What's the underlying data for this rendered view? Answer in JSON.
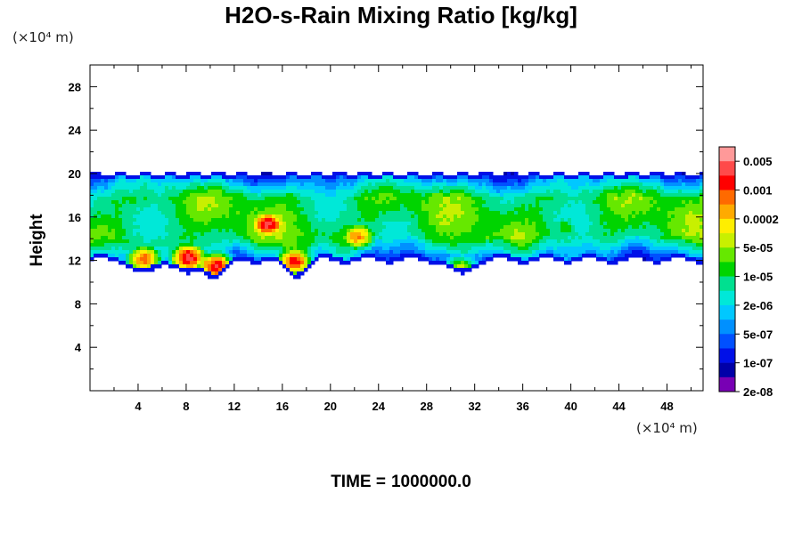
{
  "chart_data": {
    "type": "heatmap",
    "title": "H2O-s-Rain Mixing Ratio [kg/kg]",
    "xlabel": "",
    "ylabel": "Height",
    "x_unit": "(×10⁴ m)",
    "y_unit": "(×10⁴ m)",
    "xlim": [
      0,
      51
    ],
    "ylim": [
      0,
      30
    ],
    "x_ticks": [
      4,
      8,
      12,
      16,
      20,
      24,
      28,
      32,
      36,
      40,
      44,
      48
    ],
    "y_ticks": [
      4,
      8,
      12,
      16,
      20,
      24,
      28
    ],
    "colorbar": {
      "labels": [
        "0.005",
        "0.001",
        "0.0002",
        "5e-05",
        "1e-05",
        "2e-06",
        "5e-07",
        "1e-07",
        "2e-08"
      ],
      "colors": [
        "#ff9999",
        "#ff4a4a",
        "#ff0000",
        "#ff6a00",
        "#ffaa00",
        "#ffee00",
        "#c8f000",
        "#66e800",
        "#00d400",
        "#00e090",
        "#00e8d8",
        "#00c8ff",
        "#0090ff",
        "#0050ff",
        "#0010e8",
        "#0000a8",
        "#7800b4"
      ]
    },
    "layer": {
      "bottom_height": 12,
      "top_height": 20,
      "description_free": true
    },
    "cores": [
      {
        "x": 4.5,
        "y": 12.1,
        "level": 12
      },
      {
        "x": 8.2,
        "y": 12.2,
        "level": 14
      },
      {
        "x": 10.5,
        "y": 11.4,
        "level": 14
      },
      {
        "x": 14.8,
        "y": 15.3,
        "level": 13
      },
      {
        "x": 17.0,
        "y": 11.8,
        "level": 13
      },
      {
        "x": 22.3,
        "y": 14.2,
        "level": 11
      },
      {
        "x": 30.8,
        "y": 11.1,
        "level": 10
      },
      {
        "x": 39.5,
        "y": 15.0,
        "level": 7
      }
    ]
  },
  "time": {
    "label": "TIME =",
    "value": "1000000.0"
  }
}
